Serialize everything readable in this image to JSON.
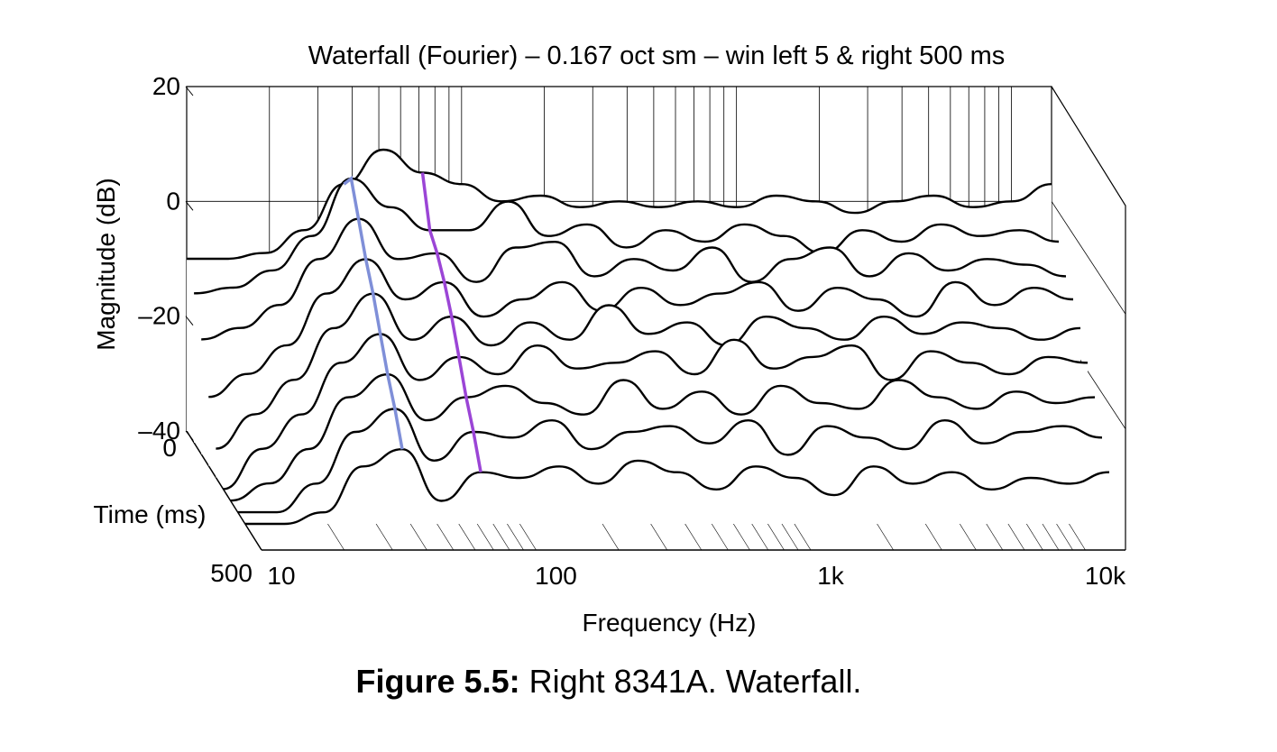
{
  "chart_data": {
    "type": "waterfall",
    "title": "Waterfall (Fourier) – 0.167 oct sm – win left 5 & right 500 ms",
    "xlabel": "Frequency (Hz)",
    "ylabel": "Magnitude (dB)",
    "zlabel": "Time (ms)",
    "x_scale": "log",
    "x_ticks": [
      "10",
      "100",
      "1k",
      "10k"
    ],
    "xlim": [
      10,
      14000
    ],
    "y_ticks": [
      "20",
      "0",
      "–20",
      "–40"
    ],
    "ylim": [
      -40,
      20
    ],
    "z_ticks": [
      "0",
      "500"
    ],
    "zlim": [
      0,
      500
    ],
    "grid": true,
    "colors": {
      "trace": "#000000",
      "ridge_1": "#7f8fd8",
      "ridge_2": "#9b45d6"
    },
    "series": [
      {
        "values": [
          -10,
          -10,
          -9,
          -5,
          3,
          9,
          5,
          3,
          0,
          1,
          -1,
          0,
          -1,
          0,
          -1,
          1,
          0,
          -2,
          0,
          1,
          -1,
          0,
          3
        ]
      },
      {
        "values": [
          -14,
          -13,
          -10,
          -4,
          6,
          1,
          -3,
          -3,
          2,
          -4,
          -2,
          -6,
          -3,
          -5,
          -2,
          -4,
          -7,
          -3,
          -5,
          -2,
          -4,
          -3,
          -5
        ]
      },
      {
        "values": [
          -20,
          -18,
          -14,
          -6,
          1,
          -6,
          -5,
          -10,
          -4,
          -3,
          -9,
          -6,
          -8,
          -4,
          -10,
          -6,
          -4,
          -9,
          -5,
          -8,
          -6,
          -7,
          -9
        ]
      },
      {
        "values": [
          -28,
          -24,
          -19,
          -10,
          -4,
          -11,
          -8,
          -14,
          -11,
          -8,
          -13,
          -9,
          -12,
          -10,
          -8,
          -13,
          -9,
          -11,
          -14,
          -8,
          -12,
          -9,
          -11
        ]
      },
      {
        "values": [
          -35,
          -29,
          -23,
          -14,
          -8,
          -16,
          -12,
          -17,
          -13,
          -16,
          -10,
          -15,
          -13,
          -17,
          -12,
          -14,
          -16,
          -12,
          -15,
          -13,
          -14,
          -16,
          -14
        ]
      },
      {
        "values": [
          -40,
          -33,
          -27,
          -18,
          -13,
          -21,
          -17,
          -20,
          -15,
          -19,
          -18,
          -16,
          -20,
          -14,
          -19,
          -17,
          -15,
          -21,
          -16,
          -18,
          -20,
          -17,
          -18
        ]
      },
      {
        "values": [
          -40,
          -37,
          -31,
          -22,
          -18,
          -26,
          -22,
          -20,
          -23,
          -25,
          -19,
          -24,
          -21,
          -25,
          -20,
          -23,
          -24,
          -19,
          -22,
          -24,
          -21,
          -23,
          -22
        ]
      },
      {
        "values": [
          -40,
          -40,
          -35,
          -26,
          -22,
          -31,
          -26,
          -27,
          -24,
          -29,
          -26,
          -25,
          -28,
          -24,
          -30,
          -25,
          -27,
          -29,
          -24,
          -28,
          -26,
          -25,
          -27
        ]
      },
      {
        "values": [
          -40,
          -40,
          -38,
          -30,
          -27,
          -36,
          -31,
          -32,
          -30,
          -33,
          -29,
          -31,
          -34,
          -30,
          -32,
          -35,
          -30,
          -33,
          -31,
          -34,
          -32,
          -33,
          -31
        ]
      }
    ]
  },
  "caption": {
    "label": "Figure 5.5:",
    "text": " Right 8341A. Waterfall."
  }
}
